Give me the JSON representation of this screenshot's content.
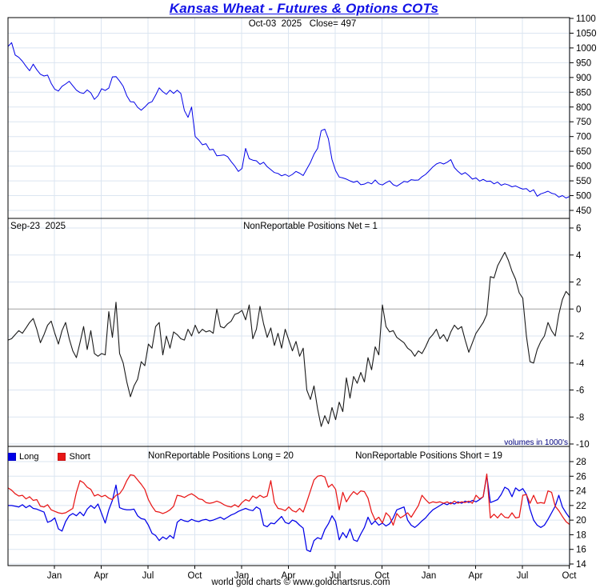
{
  "title": "Kansas Wheat - Futures & Options COTs",
  "price_panel": {
    "subtitle": "Oct-03  2025   Close= 497"
  },
  "net_panel": {
    "date_label": "Sep-23  2025",
    "header": "NonReportable Positions Net = 1",
    "note": "volumes in 1000's"
  },
  "positions_panel": {
    "legend": {
      "long_label": "Long",
      "short_label": "Short"
    },
    "header_long": "NonReportable Positions Long = 20",
    "header_short": "NonReportable Positions Short = 19"
  },
  "footer": "world gold charts © www.goldchartsrus.com",
  "colors": {
    "title": "#1212e6",
    "price_line": "#0000e8",
    "net_line": "#1a1a1a",
    "long_line": "#0000e8",
    "short_line": "#e81616",
    "grid": "#dbe5f1",
    "zero_line": "#a0a0a0",
    "note_text": "#00007e",
    "axis_text": "#000000"
  },
  "chart_data": [
    {
      "type": "line",
      "title": "Kansas Wheat futures weekly close",
      "x_range": "Oct 2022 - Oct 2025 (weekly)",
      "xticklabels": [
        "Jan",
        "Apr",
        "Jul",
        "Oct",
        "Jan",
        "Apr",
        "Jul",
        "Oct",
        "Jan",
        "Apr",
        "Jul",
        "Oct"
      ],
      "yticks": [
        1100,
        1050,
        1000,
        950,
        900,
        850,
        800,
        750,
        700,
        650,
        600,
        550,
        500,
        450
      ],
      "ylim": [
        450,
        1100
      ],
      "grid": true,
      "legend_position": "none",
      "annotation": "Oct-03 2025 Close= 497",
      "series": [
        {
          "name": "Close",
          "color": "#0000e8",
          "values": [
            1005,
            1018,
            976,
            968,
            955,
            938,
            923,
            945,
            926,
            911,
            905,
            908,
            880,
            860,
            854,
            870,
            878,
            887,
            872,
            857,
            849,
            846,
            858,
            848,
            826,
            838,
            862,
            856,
            864,
            902,
            903,
            888,
            870,
            838,
            818,
            817,
            799,
            789,
            800,
            813,
            818,
            840,
            865,
            852,
            843,
            857,
            846,
            857,
            846,
            788,
            765,
            800,
            700,
            688,
            672,
            676,
            655,
            657,
            635,
            636,
            638,
            632,
            615,
            600,
            582,
            592,
            660,
            625,
            620,
            618,
            606,
            613,
            598,
            588,
            578,
            575,
            567,
            572,
            565,
            572,
            582,
            576,
            568,
            590,
            612,
            640,
            660,
            720,
            725,
            692,
            622,
            585,
            563,
            560,
            556,
            550,
            545,
            549,
            537,
            539,
            545,
            540,
            553,
            540,
            536,
            544,
            550,
            537,
            532,
            540,
            548,
            546,
            554,
            552,
            553,
            564,
            572,
            584,
            597,
            607,
            612,
            607,
            613,
            622,
            595,
            582,
            572,
            578,
            568,
            556,
            560,
            549,
            555,
            548,
            549,
            540,
            546,
            535,
            540,
            536,
            530,
            533,
            527,
            522,
            524,
            513,
            520,
            498,
            506,
            510,
            515,
            508,
            505,
            495,
            500,
            492,
            497
          ]
        }
      ]
    },
    {
      "type": "line",
      "title": "NonReportable Positions Net",
      "yticks": [
        6,
        4,
        2,
        0,
        -2,
        -4,
        -6,
        -8,
        -10
      ],
      "ylim": [
        -10,
        6
      ],
      "grid": true,
      "zero_line": true,
      "legend_position": "none",
      "series": [
        {
          "name": "Net",
          "color": "#1a1a1a",
          "values": [
            -2.3,
            -2.2,
            -1.9,
            -1.6,
            -1.8,
            -1.4,
            -1.0,
            -0.7,
            -1.5,
            -2.5,
            -1.9,
            -1.2,
            -0.9,
            -1.8,
            -2.6,
            -1.6,
            -1.0,
            -2.2,
            -3.1,
            -3.6,
            -2.5,
            -1.3,
            -3.0,
            -1.6,
            -3.3,
            -3.5,
            -3.3,
            -3.4,
            -0.2,
            -2.1,
            0.5,
            -3.3,
            -4.0,
            -5.4,
            -6.5,
            -5.7,
            -5.2,
            -3.9,
            -4.2,
            -2.6,
            -2.9,
            -1.3,
            -1.0,
            -3.4,
            -2.0,
            -2.9,
            -1.7,
            -1.9,
            -2.2,
            -2.3,
            -1.5,
            -2.0,
            -1.2,
            -1.8,
            -1.5,
            -1.7,
            -1.6,
            -1.8,
            0.0,
            -1.3,
            -1.4,
            -1.1,
            -0.9,
            -0.4,
            -0.3,
            -0.1,
            -0.8,
            0.3,
            -2.2,
            -1.5,
            0.2,
            -1.1,
            -2.1,
            -1.4,
            -2.7,
            -1.8,
            -2.9,
            -1.5,
            -2.3,
            -3.1,
            -2.4,
            -3.5,
            -2.9,
            -6.0,
            -6.7,
            -5.7,
            -7.4,
            -8.7,
            -7.9,
            -8.5,
            -7.3,
            -8.2,
            -6.9,
            -7.6,
            -5.1,
            -6.6,
            -5.0,
            -5.5,
            -4.7,
            -5.4,
            -3.6,
            -4.5,
            -2.8,
            -3.4,
            0.3,
            -1.3,
            -1.7,
            -1.6,
            -2.1,
            -2.3,
            -2.5,
            -2.9,
            -3.1,
            -3.5,
            -3.1,
            -3.3,
            -2.8,
            -2.2,
            -1.9,
            -1.5,
            -2.2,
            -1.9,
            -2.4,
            -1.7,
            -1.2,
            -1.5,
            -1.3,
            -2.3,
            -3.2,
            -2.5,
            -1.8,
            -1.4,
            -1.0,
            -0.4,
            2.4,
            2.3,
            3.2,
            3.7,
            4.2,
            3.6,
            2.8,
            2.2,
            1.2,
            0.8,
            -2.0,
            -3.9,
            -4.0,
            -3.0,
            -2.4,
            -2.0,
            -1.0,
            -1.6,
            -2.0,
            -0.4,
            0.7,
            1.3,
            1.0
          ]
        }
      ]
    },
    {
      "type": "line",
      "title": "NonReportable Positions Long & Short",
      "yticks": [
        28,
        26,
        24,
        22,
        20,
        18,
        16,
        14
      ],
      "ylim": [
        14,
        28
      ],
      "grid": true,
      "legend_position": "top-left",
      "series": [
        {
          "name": "Long",
          "color": "#0000e8",
          "values": [
            22.0,
            22.0,
            21.9,
            21.8,
            22.1,
            21.7,
            22.0,
            21.6,
            21.5,
            21.3,
            21.1,
            19.7,
            19.9,
            20.3,
            18.8,
            18.5,
            19.8,
            20.6,
            20.9,
            20.6,
            21.1,
            20.6,
            21.5,
            22.0,
            21.6,
            22.2,
            20.9,
            19.6,
            21.4,
            22.7,
            24.8,
            21.7,
            21.5,
            21.4,
            21.4,
            21.5,
            20.6,
            20.2,
            20.1,
            19.3,
            18.2,
            17.9,
            17.2,
            17.7,
            17.4,
            17.9,
            17.5,
            19.7,
            20.1,
            19.9,
            19.8,
            20.1,
            19.9,
            19.8,
            20.0,
            20.1,
            19.9,
            20.0,
            20.2,
            20.4,
            20.1,
            20.4,
            20.7,
            20.9,
            21.2,
            21.4,
            21.6,
            21.4,
            21.3,
            21.8,
            21.5,
            19.3,
            19.1,
            19.6,
            19.5,
            20.0,
            20.5,
            19.7,
            19.5,
            20.0,
            19.8,
            19.3,
            18.9,
            15.9,
            15.7,
            17.2,
            17.6,
            17.4,
            18.7,
            19.5,
            20.6,
            19.8,
            17.3,
            18.3,
            17.6,
            18.8,
            17.3,
            17.1,
            18.1,
            19.0,
            20.4,
            19.4,
            19.9,
            19.3,
            19.6,
            19.2,
            19.5,
            20.3,
            21.4,
            21.6,
            21.8,
            20.0,
            19.3,
            19.0,
            19.4,
            19.9,
            20.3,
            20.9,
            21.4,
            21.7,
            22.0,
            22.3,
            22.1,
            22.4,
            22.2,
            22.5,
            22.3,
            22.6,
            22.4,
            22.7,
            22.5,
            22.8,
            23.2,
            26.1,
            22.4,
            22.6,
            22.8,
            23.5,
            24.5,
            24.2,
            23.2,
            24.4,
            24.0,
            24.3,
            23.5,
            21.5,
            20.0,
            19.3,
            19.0,
            19.3,
            20.1,
            21.0,
            21.9,
            23.4,
            21.8,
            21.0,
            20.3
          ]
        },
        {
          "name": "Short",
          "color": "#e81616",
          "values": [
            24.4,
            24.1,
            23.6,
            23.3,
            23.4,
            22.9,
            23.2,
            22.7,
            22.8,
            21.9,
            21.8,
            22.1,
            21.4,
            21.2,
            21.0,
            20.9,
            21.0,
            21.3,
            21.6,
            23.8,
            25.4,
            25.1,
            24.5,
            24.2,
            23.3,
            23.5,
            23.2,
            23.4,
            23.0,
            22.8,
            23.4,
            23.6,
            24.3,
            25.4,
            26.2,
            26.1,
            25.5,
            24.9,
            24.2,
            22.8,
            21.9,
            21.2,
            21.1,
            20.9,
            21.1,
            21.4,
            21.9,
            23.4,
            23.3,
            23.1,
            23.4,
            23.6,
            23.3,
            22.9,
            22.8,
            22.4,
            22.3,
            22.4,
            22.6,
            22.4,
            22.1,
            21.9,
            21.8,
            22.1,
            21.8,
            22.4,
            22.8,
            22.6,
            23.3,
            23.0,
            23.4,
            23.1,
            23.3,
            25.4,
            22.4,
            21.6,
            21.5,
            21.3,
            21.8,
            21.3,
            21.1,
            21.6,
            21.1,
            22.5,
            24.0,
            25.5,
            26.0,
            26.1,
            25.9,
            24.5,
            24.9,
            24.2,
            21.4,
            23.8,
            22.5,
            23.3,
            23.9,
            23.5,
            24.0,
            23.9,
            23.0,
            21.1,
            20.0,
            20.4,
            19.6,
            21.0,
            20.5,
            19.3,
            20.9,
            20.3,
            20.6,
            21.0,
            20.4,
            21.2,
            22.0,
            23.4,
            22.8,
            22.3,
            22.5,
            22.4,
            22.5,
            22.3,
            22.5,
            22.2,
            22.6,
            22.3,
            22.5,
            22.4,
            22.6,
            22.3,
            23.4,
            22.9,
            23.2,
            26.3,
            20.3,
            20.8,
            20.3,
            20.9,
            20.4,
            20.3,
            21.0,
            20.3,
            20.4,
            23.4,
            23.5,
            22.3,
            23.4,
            22.3,
            22.4,
            22.3,
            24.0,
            23.8,
            21.9,
            21.3,
            20.5,
            19.8,
            19.4
          ]
        }
      ]
    }
  ]
}
